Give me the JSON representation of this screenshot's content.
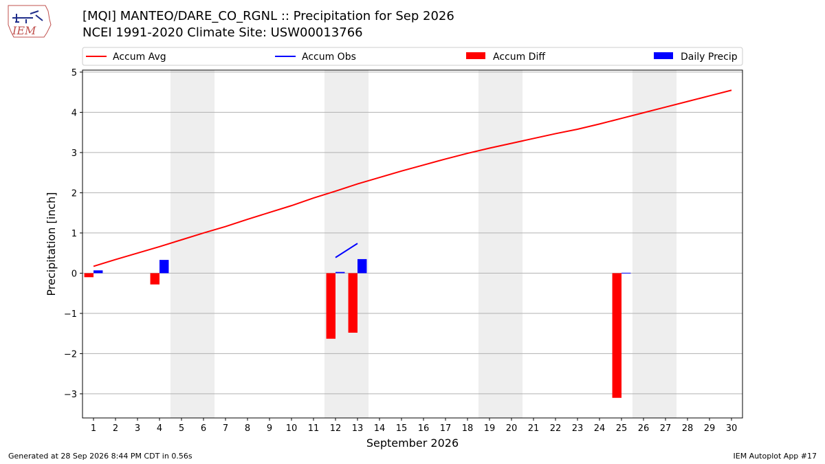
{
  "logo_text": "IEM",
  "title_line1": "[MQI] MANTEO/DARE_CO_RGNL :: Precipitation for Sep 2026",
  "title_line2": "NCEI 1991-2020 Climate Site: USW00013766",
  "footer_left": "Generated at 28 Sep 2026 8:44 PM CDT in 0.56s",
  "footer_right": "IEM Autoplot App #17",
  "colors": {
    "avg": "#ff0000",
    "obs": "#0000ff",
    "diff": "#ff0000",
    "daily": "#0000ff",
    "weekend": "#eeeeee",
    "grid": "#b0b0b0"
  },
  "chart_data": {
    "type": "bar",
    "xlabel": "September 2026",
    "ylabel": "Precipitation [inch]",
    "xlim": [
      0.5,
      30.5
    ],
    "ylim": [
      -3.6,
      5.05
    ],
    "x_ticks": [
      1,
      2,
      3,
      4,
      5,
      6,
      7,
      8,
      9,
      10,
      11,
      12,
      13,
      14,
      15,
      16,
      17,
      18,
      19,
      20,
      21,
      22,
      23,
      24,
      25,
      26,
      27,
      28,
      29,
      30
    ],
    "y_ticks": [
      5,
      4,
      3,
      2,
      1,
      0,
      -1,
      -2,
      -3
    ],
    "y_tick_labels": [
      "5",
      "4",
      "3",
      "2",
      "1",
      "0",
      "−1",
      "−2",
      "−3"
    ],
    "grid": "horizontal",
    "legend_position": "top",
    "shaded_days": [
      5,
      6,
      12,
      13,
      19,
      20,
      26,
      27
    ],
    "legend": [
      "Accum Avg",
      "Accum Obs",
      "Accum Diff",
      "Daily Precip"
    ],
    "series": [
      {
        "name": "Accum Avg",
        "kind": "line",
        "x": [
          1,
          2,
          3,
          4,
          5,
          6,
          7,
          8,
          9,
          10,
          11,
          12,
          13,
          14,
          15,
          16,
          17,
          18,
          19,
          20,
          21,
          22,
          23,
          24,
          25,
          26,
          27,
          28,
          29,
          30
        ],
        "values": [
          0.17,
          0.34,
          0.5,
          0.66,
          0.83,
          1.0,
          1.16,
          1.34,
          1.51,
          1.68,
          1.87,
          2.04,
          2.22,
          2.38,
          2.54,
          2.69,
          2.84,
          2.98,
          3.11,
          3.23,
          3.35,
          3.47,
          3.58,
          3.71,
          3.85,
          3.99,
          4.13,
          4.27,
          4.41,
          4.55
        ]
      },
      {
        "name": "Accum Obs",
        "kind": "line",
        "x": [
          12,
          13
        ],
        "values": [
          0.39,
          0.74
        ]
      },
      {
        "name": "Accum Diff",
        "kind": "bar",
        "x": [
          1,
          4,
          12,
          13,
          25
        ],
        "values": [
          -0.1,
          -0.28,
          -1.63,
          -1.48,
          -3.1
        ]
      },
      {
        "name": "Daily Precip",
        "kind": "bar",
        "x": [
          1,
          4,
          12,
          13,
          25
        ],
        "values": [
          0.07,
          0.33,
          0.03,
          0.35,
          0.01
        ]
      }
    ]
  }
}
